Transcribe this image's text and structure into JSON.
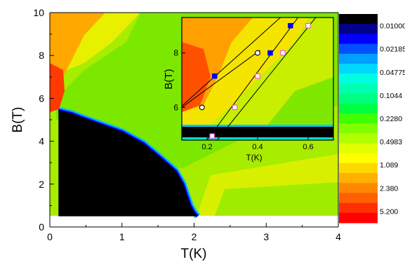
{
  "chart_data": [
    {
      "type": "heatmap",
      "xlabel": "T(K)",
      "ylabel": "B(T)",
      "xlim": [
        0,
        4
      ],
      "ylim": [
        0,
        10
      ],
      "x_ticks": [
        "0",
        "1",
        "2",
        "4"
      ],
      "x_tick_values": [
        0,
        1,
        2,
        4
      ],
      "x_tick_label_3": "3",
      "y_ticks": [
        "0",
        "2",
        "4",
        "6",
        "8",
        "10"
      ],
      "y_tick_values": [
        0,
        2,
        4,
        6,
        8,
        10
      ],
      "data_extent": {
        "t": [
          0.12,
          4.0
        ],
        "b": [
          0.5,
          10.0
        ]
      },
      "superconducting_boundary": [
        {
          "t": 0.12,
          "b": 5.45
        },
        {
          "t": 0.3,
          "b": 5.3
        },
        {
          "t": 0.5,
          "b": 5.05
        },
        {
          "t": 0.75,
          "b": 4.75
        },
        {
          "t": 1.0,
          "b": 4.45
        },
        {
          "t": 1.3,
          "b": 3.9
        },
        {
          "t": 1.55,
          "b": 3.2
        },
        {
          "t": 1.75,
          "b": 2.6
        },
        {
          "t": 1.85,
          "b": 2.0
        },
        {
          "t": 1.9,
          "b": 1.5
        },
        {
          "t": 1.95,
          "b": 1.0
        },
        {
          "t": 2.0,
          "b": 0.7
        },
        {
          "t": 2.05,
          "b": 0.5
        }
      ]
    },
    {
      "type": "scatter",
      "xlabel": "T(K)",
      "ylabel": "B(T)",
      "xlim": [
        0.1,
        0.7
      ],
      "ylim": [
        4.8,
        9.3
      ],
      "x_ticks": [
        "0.2",
        "0.4",
        "0.6"
      ],
      "x_tick_values": [
        0.2,
        0.4,
        0.6
      ],
      "y_ticks": [
        "6",
        "8"
      ],
      "y_tick_values": [
        6,
        8
      ],
      "series": [
        {
          "marker": "open-circle",
          "color": "#000000",
          "fill": "#ffffff",
          "points": [
            {
              "x": 0.18,
              "y": 6.0
            },
            {
              "x": 0.4,
              "y": 8.0
            }
          ]
        },
        {
          "marker": "filled-square",
          "color": "#0000ff",
          "fill": "#0000ff",
          "points": [
            {
              "x": 0.23,
              "y": 7.15
            },
            {
              "x": 0.45,
              "y": 8.0
            },
            {
              "x": 0.53,
              "y": 9.0
            }
          ]
        },
        {
          "marker": "open-square",
          "color": "#ff44ff",
          "fill": "#ffffff",
          "points": [
            {
              "x": 0.22,
              "y": 4.95
            },
            {
              "x": 0.31,
              "y": 6.0
            },
            {
              "x": 0.4,
              "y": 7.15
            },
            {
              "x": 0.5,
              "y": 8.0
            },
            {
              "x": 0.6,
              "y": 9.0
            }
          ]
        }
      ],
      "fit_lines": [
        {
          "from": {
            "x": 0.1,
            "y": 6.05
          },
          "to": {
            "x": 0.49,
            "y": 9.3
          }
        },
        {
          "from": {
            "x": 0.1,
            "y": 6.0
          },
          "to": {
            "x": 0.41,
            "y": 8.1
          }
        },
        {
          "from": {
            "x": 0.2,
            "y": 4.8
          },
          "to": {
            "x": 0.56,
            "y": 9.3
          }
        },
        {
          "from": {
            "x": 0.24,
            "y": 4.8
          },
          "to": {
            "x": 0.63,
            "y": 9.3
          }
        }
      ]
    }
  ],
  "colorbar": {
    "labels": [
      "0.01000",
      "0.02185",
      "0.04775",
      "0.1044",
      "0.2280",
      "0.4983",
      "1.089",
      "2.380",
      "5.200"
    ],
    "colors": [
      "#000000",
      "#00008b",
      "#0000ff",
      "#0050ff",
      "#00a0ff",
      "#00d8ff",
      "#00ffe0",
      "#00ffb0",
      "#00ff80",
      "#00ff40",
      "#40ff00",
      "#80ff00",
      "#b0ff00",
      "#e0ff00",
      "#ffff00",
      "#ffd800",
      "#ffb000",
      "#ff8800",
      "#ff6000",
      "#ff3000",
      "#ff0000"
    ]
  }
}
